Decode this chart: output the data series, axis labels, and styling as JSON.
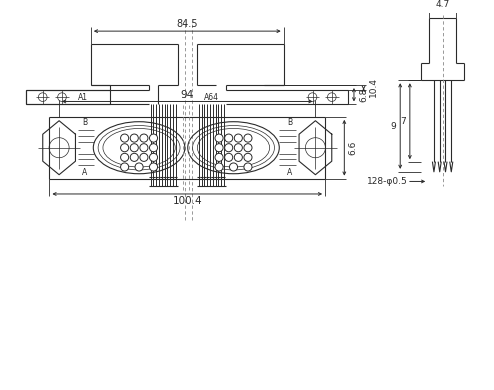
{
  "line_color": "#2a2a2a",
  "dim_color": "#2a2a2a",
  "dash_color": "#888888",
  "lw": 0.8,
  "thin_lw": 0.5,
  "dim_84_5": "84.5",
  "dim_6_8": "6.8",
  "dim_10_4": "10.4",
  "dim_4_7": "4.7",
  "dim_7": "7",
  "dim_9": "9",
  "dim_128_phi": "128-φ0.5",
  "dim_94": "94",
  "dim_100_4": "100.4",
  "dim_6_6": "6.6",
  "label_A1": "A1",
  "label_A64": "A64",
  "label_A": "A",
  "label_B": "B"
}
